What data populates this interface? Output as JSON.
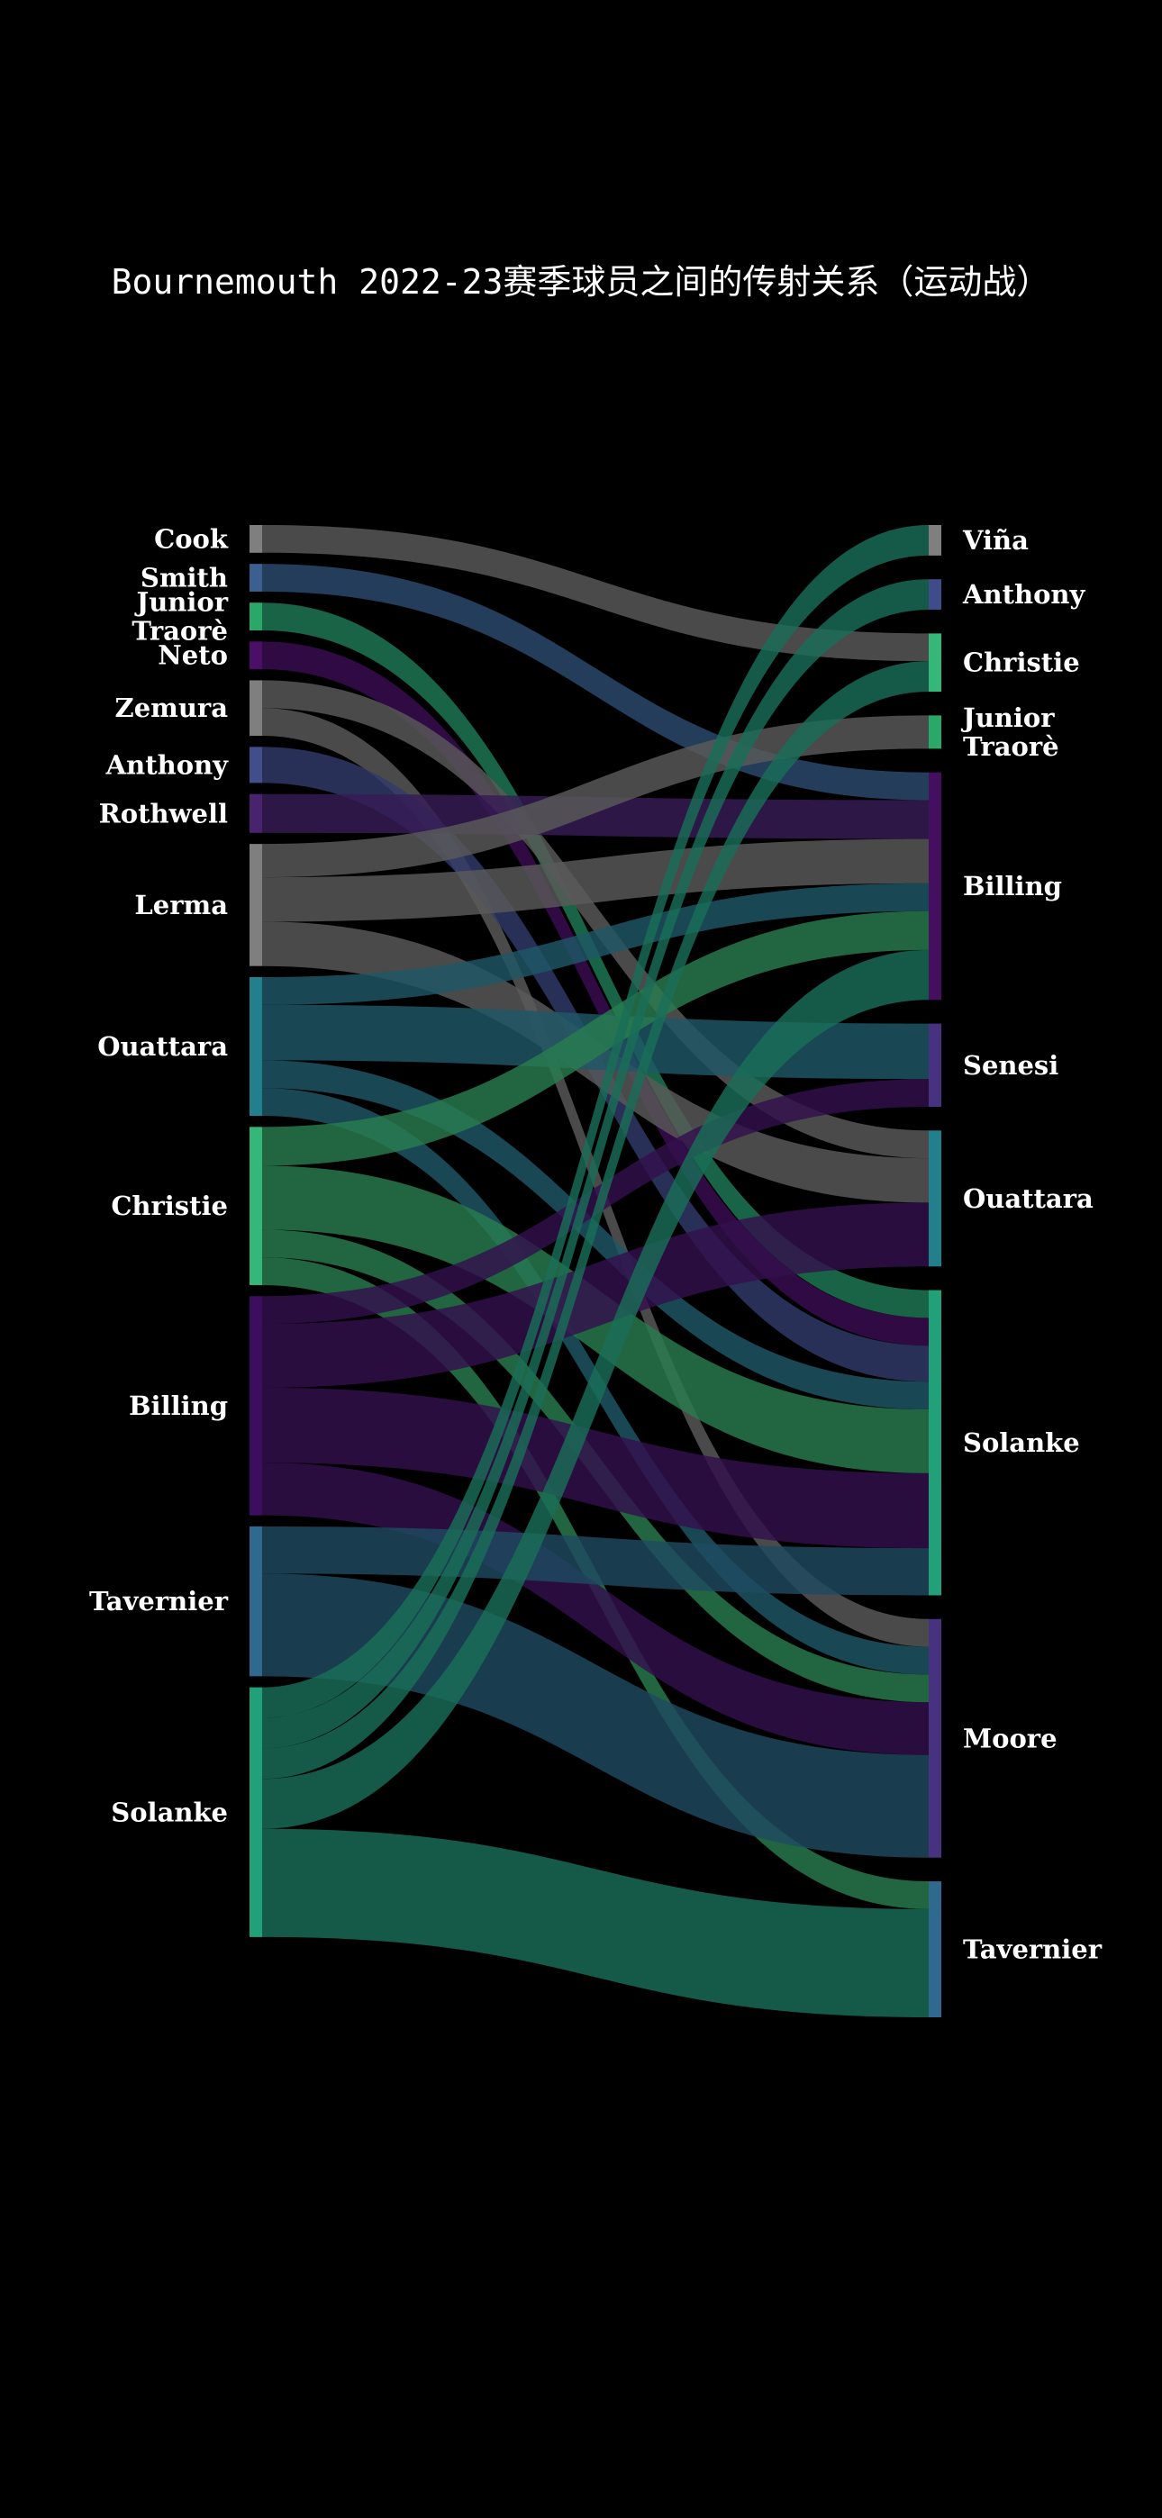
{
  "chart_data": {
    "type": "sankey",
    "title": "Bournemouth 2022-23赛季球员之间的传射关系（运动战）",
    "sources": [
      {
        "name": "Cook",
        "label": [
          "Cook"
        ],
        "color": "#7f7f7f"
      },
      {
        "name": "Smith",
        "label": [
          "Smith"
        ],
        "color": "#3b5f8e"
      },
      {
        "name": "Junior Traorè",
        "label": [
          "Junior",
          "Traorè"
        ],
        "color": "#2aa86a"
      },
      {
        "name": "Neto",
        "label": [
          "Neto"
        ],
        "color": "#4a0f66"
      },
      {
        "name": "Zemura",
        "label": [
          "Zemura"
        ],
        "color": "#7f7f7f"
      },
      {
        "name": "Anthony",
        "label": [
          "Anthony"
        ],
        "color": "#424d8c"
      },
      {
        "name": "Rothwell",
        "label": [
          "Rothwell"
        ],
        "color": "#48246e"
      },
      {
        "name": "Lerma",
        "label": [
          "Lerma"
        ],
        "color": "#7f7f7f"
      },
      {
        "name": "Ouattara",
        "label": [
          "Ouattara"
        ],
        "color": "#21808c"
      },
      {
        "name": "Christie",
        "label": [
          "Christie"
        ],
        "color": "#35b779"
      },
      {
        "name": "Billing",
        "label": [
          "Billing"
        ],
        "color": "#3b0f5e"
      },
      {
        "name": "Tavernier",
        "label": [
          "Tavernier"
        ],
        "color": "#2f6a8e"
      },
      {
        "name": "Solanke",
        "label": [
          "Solanke"
        ],
        "color": "#22a07a"
      }
    ],
    "targets": [
      {
        "name": "Viña",
        "label": [
          "Viña"
        ],
        "color": "#7f7f7f"
      },
      {
        "name": "Anthony",
        "label": [
          "Anthony"
        ],
        "color": "#3e4c8a"
      },
      {
        "name": "Christie",
        "label": [
          "Christie"
        ],
        "color": "#35b779"
      },
      {
        "name": "Junior Traorè",
        "label": [
          "Junior",
          "Traorè"
        ],
        "color": "#2aa86a"
      },
      {
        "name": "Billing",
        "label": [
          "Billing"
        ],
        "color": "#440f5e"
      },
      {
        "name": "Senesi",
        "label": [
          "Senesi"
        ],
        "color": "#46327e"
      },
      {
        "name": "Ouattara",
        "label": [
          "Ouattara"
        ],
        "color": "#21808c"
      },
      {
        "name": "Solanke",
        "label": [
          "Solanke"
        ],
        "color": "#22a07a"
      },
      {
        "name": "Moore",
        "label": [
          "Moore"
        ],
        "color": "#46327e"
      },
      {
        "name": "Tavernier",
        "label": [
          "Tavernier"
        ],
        "color": "#2f6a8e"
      }
    ],
    "flows": [
      {
        "source": "Cook",
        "target": "Christie",
        "value": 1,
        "color": "#5a5a5a"
      },
      {
        "source": "Smith",
        "target": "Billing",
        "value": 1,
        "color": "#2b4a6e"
      },
      {
        "source": "Junior Traorè",
        "target": "Solanke",
        "value": 1,
        "color": "#1f7a56"
      },
      {
        "source": "Neto",
        "target": "Solanke",
        "value": 1,
        "color": "#3a0c50"
      },
      {
        "source": "Zemura",
        "target": "Ouattara",
        "value": 1,
        "color": "#5a5a5a"
      },
      {
        "source": "Zemura",
        "target": "Moore",
        "value": 1,
        "color": "#5a5a5a"
      },
      {
        "source": "Anthony",
        "target": "Solanke",
        "value": 1.3,
        "color": "#323a6a"
      },
      {
        "source": "Rothwell",
        "target": "Billing",
        "value": 1.4,
        "color": "#361c55"
      },
      {
        "source": "Lerma",
        "target": "Junior Traorè",
        "value": 1.2,
        "color": "#5a5a5a"
      },
      {
        "source": "Lerma",
        "target": "Billing",
        "value": 1.6,
        "color": "#5a5a5a"
      },
      {
        "source": "Lerma",
        "target": "Ouattara",
        "value": 1.6,
        "color": "#5a5a5a"
      },
      {
        "source": "Ouattara",
        "target": "Billing",
        "value": 1,
        "color": "#1e5866"
      },
      {
        "source": "Ouattara",
        "target": "Senesi",
        "value": 2,
        "color": "#1e5866"
      },
      {
        "source": "Ouattara",
        "target": "Solanke",
        "value": 1,
        "color": "#1e5866"
      },
      {
        "source": "Ouattara",
        "target": "Moore",
        "value": 1,
        "color": "#1e5866"
      },
      {
        "source": "Christie",
        "target": "Billing",
        "value": 1.4,
        "color": "#287d4f"
      },
      {
        "source": "Christie",
        "target": "Solanke",
        "value": 2.3,
        "color": "#287d4f"
      },
      {
        "source": "Christie",
        "target": "Moore",
        "value": 1,
        "color": "#287d4f"
      },
      {
        "source": "Christie",
        "target": "Tavernier",
        "value": 1,
        "color": "#287d4f"
      },
      {
        "source": "Billing",
        "target": "Senesi",
        "value": 1,
        "color": "#33104d"
      },
      {
        "source": "Billing",
        "target": "Ouattara",
        "value": 2.3,
        "color": "#33104d"
      },
      {
        "source": "Billing",
        "target": "Solanke",
        "value": 2.7,
        "color": "#33104d"
      },
      {
        "source": "Billing",
        "target": "Moore",
        "value": 1.9,
        "color": "#33104d"
      },
      {
        "source": "Tavernier",
        "target": "Solanke",
        "value": 1.7,
        "color": "#1f4a60"
      },
      {
        "source": "Tavernier",
        "target": "Moore",
        "value": 3.7,
        "color": "#1f4a60"
      },
      {
        "source": "Solanke",
        "target": "Viña",
        "value": 1.1,
        "color": "#1a6e58"
      },
      {
        "source": "Solanke",
        "target": "Anthony",
        "value": 1.1,
        "color": "#1a6e58"
      },
      {
        "source": "Solanke",
        "target": "Christie",
        "value": 1.1,
        "color": "#1a6e58"
      },
      {
        "source": "Solanke",
        "target": "Billing",
        "value": 1.8,
        "color": "#1a6e58"
      },
      {
        "source": "Solanke",
        "target": "Tavernier",
        "value": 3.9,
        "color": "#1a6e58"
      }
    ]
  }
}
